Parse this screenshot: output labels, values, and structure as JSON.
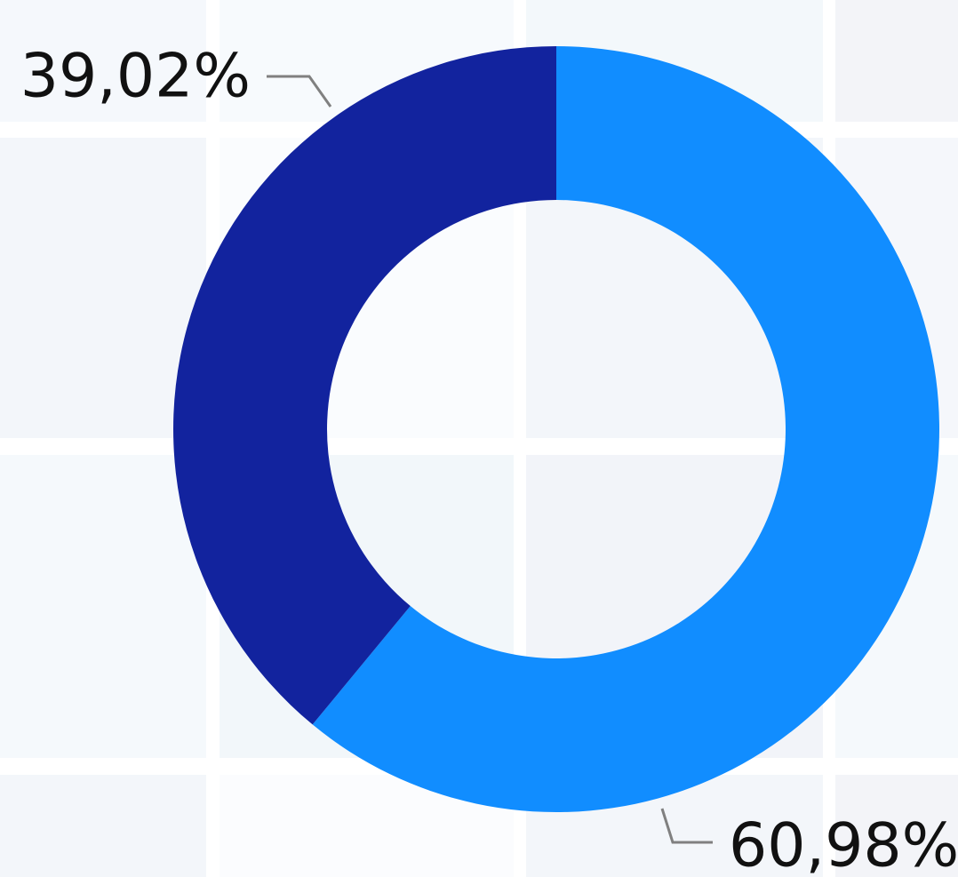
{
  "chart_data": {
    "type": "donut",
    "values": [
      60.98,
      39.02
    ],
    "value_labels": [
      "60,98%",
      "39,02%"
    ],
    "colors": [
      "#118dff",
      "#12239e"
    ]
  }
}
